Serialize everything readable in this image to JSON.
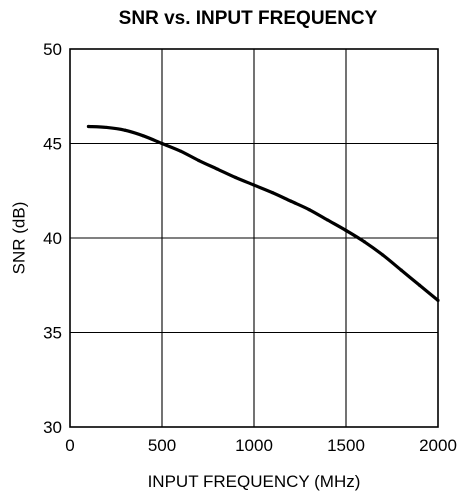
{
  "chart_data": {
    "type": "line",
    "title": "SNR vs. INPUT FREQUENCY",
    "xlabel": "INPUT FREQUENCY (MHz)",
    "ylabel": "SNR (dB)",
    "xlim": [
      0,
      2000
    ],
    "ylim": [
      30,
      50
    ],
    "x_ticks": [
      0,
      500,
      1000,
      1500,
      2000
    ],
    "y_ticks": [
      30,
      35,
      40,
      45,
      50
    ],
    "x_tick_labels": [
      "0",
      "500",
      "1000",
      "1500",
      "2000"
    ],
    "y_tick_labels": [
      "30",
      "35",
      "40",
      "45",
      "50"
    ],
    "grid": true,
    "legend": "none",
    "series": [
      {
        "x": [
          100,
          200,
          300,
          400,
          500,
          600,
          700,
          800,
          900,
          1000,
          1100,
          1200,
          1300,
          1400,
          1500,
          1600,
          1700,
          1800,
          1900,
          2000
        ],
        "y": [
          45.9,
          45.85,
          45.7,
          45.4,
          45.0,
          44.6,
          44.1,
          43.65,
          43.2,
          42.8,
          42.4,
          41.95,
          41.5,
          40.95,
          40.4,
          39.8,
          39.1,
          38.3,
          37.5,
          36.7
        ],
        "color": "#000000"
      }
    ]
  }
}
